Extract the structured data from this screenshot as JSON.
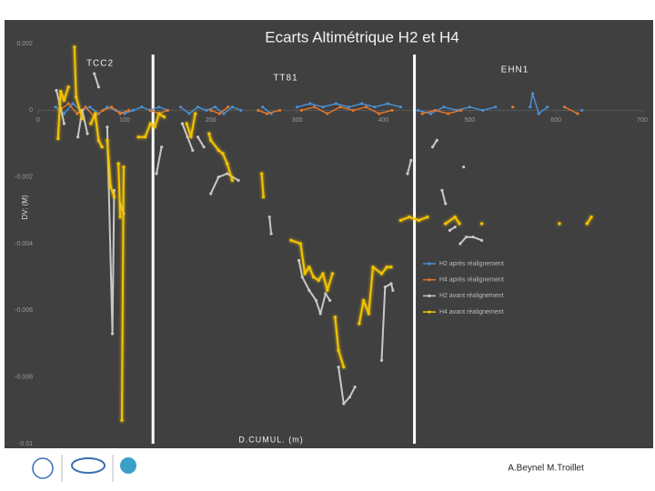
{
  "chart_data": {
    "type": "line",
    "title": "Ecarts Altimétrique H2 et H4",
    "xlabel": "D.CUMUL. (m)",
    "ylabel": "DV: (M)",
    "annotations": [
      "TCC2",
      "TT81",
      "EHN1"
    ],
    "vlines": [
      133,
      436
    ],
    "xlim": [
      0,
      700
    ],
    "xticks": [
      0,
      100,
      200,
      300,
      400,
      500,
      600,
      700
    ],
    "ylim": [
      -0.01,
      0.002
    ],
    "yticks": [
      0.002,
      0,
      -0.002,
      -0.004,
      -0.006,
      -0.008,
      -0.01
    ],
    "legend": "right",
    "grid": false,
    "series": [
      {
        "name": "H2 après réalignement",
        "color": "#4a8fd4",
        "x": [
          20,
          30,
          40,
          50,
          60,
          70,
          80,
          90,
          100,
          110,
          120,
          130,
          140,
          150,
          158,
          165,
          175,
          185,
          195,
          205,
          215,
          225,
          235,
          248,
          260,
          270,
          285,
          300,
          315,
          330,
          345,
          360,
          375,
          390,
          405,
          420,
          430,
          440,
          455,
          470,
          485,
          500,
          515,
          530,
          550,
          570,
          573,
          580,
          590,
          610,
          630
        ],
        "values": [
          0.0001,
          -0.0001,
          0.0002,
          0,
          0.0001,
          -0.0001,
          0.0001,
          0,
          -0.0001,
          0,
          0.0001,
          0,
          0.0001,
          0,
          null,
          0.0001,
          -0.0001,
          0.0001,
          0,
          0.0001,
          -0.0001,
          0.0001,
          0,
          null,
          0.0001,
          -0.0001,
          null,
          0.0001,
          0.0002,
          0.0001,
          0.0002,
          0.0001,
          0.0002,
          0.0001,
          0.0002,
          0.0001,
          null,
          0,
          -0.0001,
          0.0001,
          0,
          0.0001,
          0,
          0.0001,
          null,
          0.0001,
          0.0005,
          -0.0001,
          0.0001,
          null,
          0
        ]
      },
      {
        "name": "H4 après réalignement",
        "color": "#e0762a",
        "x": [
          25,
          35,
          45,
          55,
          65,
          75,
          85,
          95,
          105,
          118,
          130,
          140,
          150,
          175,
          200,
          210,
          220,
          238,
          255,
          265,
          280,
          292,
          305,
          320,
          335,
          350,
          365,
          380,
          395,
          410,
          428,
          445,
          460,
          475,
          490,
          520,
          550,
          580,
          610,
          625
        ],
        "values": [
          0,
          0.0002,
          -0.0001,
          0.0001,
          -0.0002,
          0,
          0.0001,
          -0.0001,
          0,
          null,
          0,
          -0.0001,
          0,
          null,
          0,
          -0.0001,
          0.0001,
          null,
          0,
          -0.0001,
          0,
          null,
          0,
          0.0001,
          -0.0001,
          0.0001,
          0,
          0.0001,
          -0.0001,
          0,
          null,
          -0.0001,
          0,
          -0.0001,
          0,
          null,
          0.0001,
          null,
          0.0001,
          -0.0001
        ]
      },
      {
        "name": "H2 avant réalignement",
        "color": "#c8c8c8",
        "x": [
          21,
          25,
          30,
          38,
          46,
          51,
          57,
          61,
          65,
          70,
          75,
          80,
          86,
          88,
          91,
          95,
          99,
          118,
          137,
          143,
          155,
          167,
          173,
          179,
          182,
          185,
          192,
          196,
          200,
          209,
          219,
          232,
          250,
          268,
          270,
          286,
          302,
          306,
          314,
          322,
          327,
          333,
          338,
          343,
          348,
          354,
          361,
          367,
          383,
          398,
          402,
          409,
          411,
          420,
          428,
          432,
          445,
          457,
          462,
          465,
          468,
          472,
          475,
          477,
          483,
          486,
          489,
          496,
          504,
          514,
          516,
          493
        ],
        "values": [
          0.0006,
          0.0002,
          -0.0004,
          null,
          -0.0008,
          0,
          -0.0007,
          null,
          0.0011,
          0.0007,
          null,
          -0.0005,
          -0.0067,
          -0.0024,
          null,
          -0.0028,
          -0.0031,
          null,
          -0.0019,
          -0.0011,
          null,
          -0.0004,
          -0.0008,
          -0.0012,
          null,
          -0.0008,
          -0.0011,
          null,
          -0.0025,
          -0.002,
          -0.0019,
          -0.0021,
          null,
          -0.0032,
          -0.0037,
          null,
          -0.0045,
          -0.005,
          -0.0054,
          -0.0057,
          -0.0061,
          -0.0055,
          -0.0057,
          null,
          -0.0077,
          -0.0088,
          -0.0086,
          -0.0083,
          null,
          -0.0075,
          -0.0053,
          -0.0052,
          -0.0054,
          null,
          -0.0019,
          -0.0015,
          null,
          -0.0011,
          -0.0009,
          null,
          -0.0024,
          -0.0028,
          null,
          -0.0036,
          -0.0035,
          null,
          -0.004,
          -0.0038,
          -0.0038,
          -0.0039,
          null,
          -0.0017
        ]
      },
      {
        "name": "H4 avant réalignement",
        "color": "#f5c400",
        "x": [
          23,
          26,
          30,
          35,
          38,
          42,
          44,
          51,
          56,
          61,
          66,
          70,
          74,
          77,
          80,
          84,
          88,
          90,
          93,
          95,
          96,
          99,
          97,
          105,
          116,
          124,
          130,
          135,
          140,
          146,
          160,
          172,
          177,
          182,
          190,
          198,
          200,
          209,
          214,
          219,
          225,
          240,
          259,
          261,
          280,
          293,
          304,
          309,
          314,
          319,
          325,
          330,
          335,
          341,
          343,
          344,
          348,
          354,
          362,
          372,
          377,
          383,
          388,
          398,
          404,
          409,
          415,
          420,
          430,
          441,
          451,
          460,
          472,
          483,
          488,
          500,
          514,
          560,
          604,
          620,
          636,
          641
        ],
        "values": [
          -0.00085,
          0.00057,
          0.0003,
          0.0007,
          null,
          0.0019,
          0.0004,
          -0.00025,
          null,
          -0.0004,
          -0.0001,
          -0.0009,
          -0.0011,
          null,
          -0.0009,
          -0.0023,
          -0.0026,
          null,
          -0.0016,
          -0.0032,
          null,
          -0.0017,
          -0.0093,
          null,
          -0.0008,
          -0.0008,
          -0.0004,
          -0.0005,
          -0.0001,
          -0.0002,
          null,
          -0.0004,
          -0.0008,
          -0.0001,
          null,
          -0.0007,
          -0.0009,
          -0.0012,
          -0.0013,
          -0.0016,
          -0.0021,
          null,
          -0.0019,
          -0.0026,
          null,
          -0.0039,
          -0.004,
          -0.0049,
          -0.0047,
          -0.005,
          -0.0051,
          -0.0049,
          -0.0054,
          -0.0049,
          null,
          -0.0062,
          -0.0072,
          -0.0077,
          null,
          -0.0064,
          -0.0057,
          -0.0061,
          -0.0047,
          -0.0049,
          -0.0047,
          -0.0047,
          null,
          -0.0033,
          -0.0032,
          -0.0033,
          -0.0032,
          null,
          -0.0034,
          -0.0032,
          -0.0034,
          null,
          -0.0034,
          null,
          -0.0034,
          null,
          -0.0034,
          -0.0032
        ]
      }
    ]
  },
  "footer": {
    "credit": "A.Beynel M.Troillet"
  }
}
